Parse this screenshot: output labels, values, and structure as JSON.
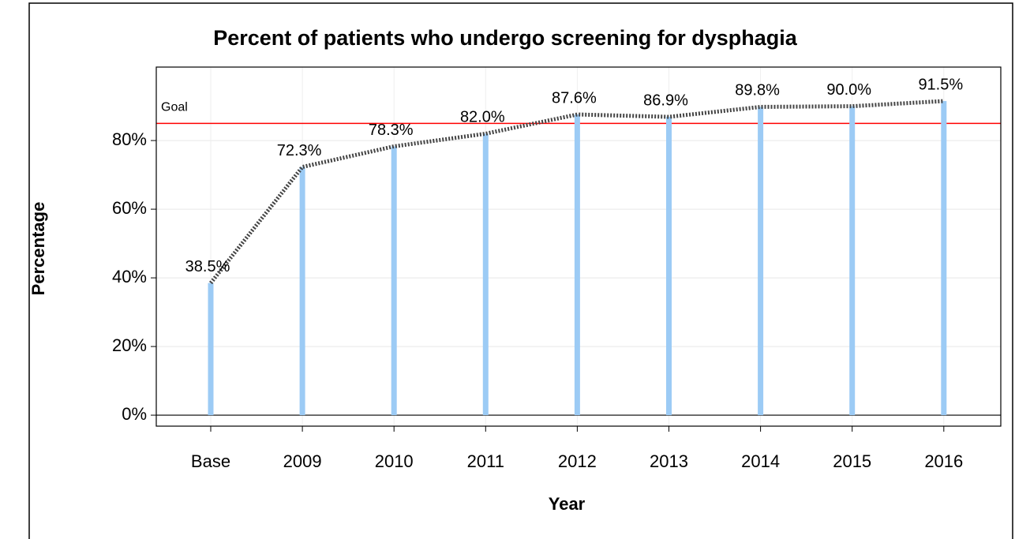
{
  "chart_data": {
    "type": "bar",
    "title": "Percent of patients who undergo screening for dysphagia",
    "x_label": "Year",
    "y_label": "Percentage",
    "categories": [
      "Base",
      "2009",
      "2010",
      "2011",
      "2012",
      "2013",
      "2014",
      "2015",
      "2016"
    ],
    "values": [
      38.5,
      72.3,
      78.3,
      82.0,
      87.6,
      86.9,
      89.8,
      90.0,
      91.5
    ],
    "value_labels": [
      "38.5%",
      "72.3%",
      "78.3%",
      "82.0%",
      "87.6%",
      "86.9%",
      "89.8%",
      "90.0%",
      "91.5%"
    ],
    "color": "#9ccbf5",
    "line_color": "#444444",
    "connect_line": true,
    "ylim": [
      -3.2,
      101.4
    ],
    "yticks": [
      {
        "value": 0,
        "label": "0%"
      },
      {
        "value": 20,
        "label": "20%"
      },
      {
        "value": 40,
        "label": "40%"
      },
      {
        "value": 60,
        "label": "60%"
      },
      {
        "value": 80,
        "label": "80%"
      }
    ],
    "grid": true,
    "reference_line": {
      "value": 85,
      "label": "Goal",
      "color": "#ff0000"
    }
  }
}
